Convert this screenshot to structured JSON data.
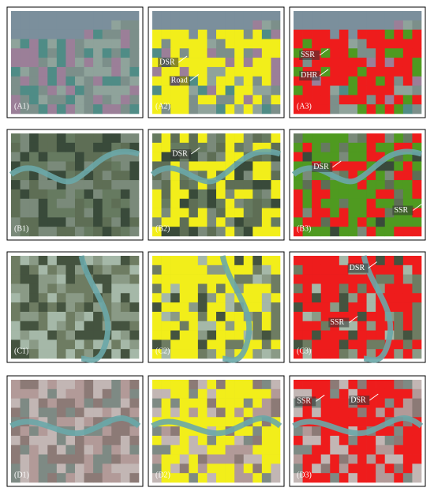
{
  "panels": [
    {
      "label": "(A1)",
      "annotations": []
    },
    {
      "label": "(A2)",
      "annotations": [
        "DSR",
        "Road"
      ]
    },
    {
      "label": "(A3)",
      "annotations": [
        "SSR",
        "DHR"
      ]
    },
    {
      "label": "(B1)",
      "annotations": []
    },
    {
      "label": "(B2)",
      "annotations": [
        "DSR"
      ]
    },
    {
      "label": "(B3)",
      "annotations": [
        "DSR",
        "SSR"
      ]
    },
    {
      "label": "(C1)",
      "annotations": []
    },
    {
      "label": "(C2)",
      "annotations": []
    },
    {
      "label": "(C3)",
      "annotations": [
        "DSR",
        "SSR"
      ]
    },
    {
      "label": "(D1)",
      "annotations": []
    },
    {
      "label": "(D2)",
      "annotations": []
    },
    {
      "label": "(D3)",
      "annotations": [
        "DSR",
        "SSR"
      ]
    }
  ]
}
